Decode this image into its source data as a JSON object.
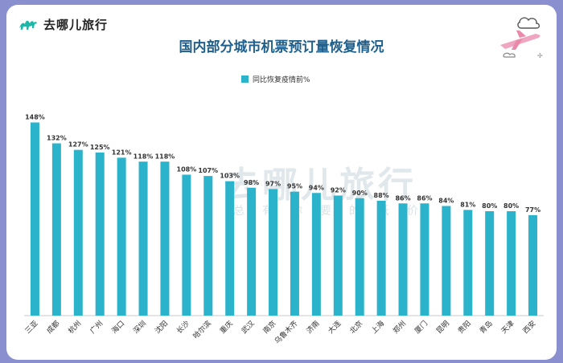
{
  "brand": {
    "name": "去哪儿旅行"
  },
  "watermark": {
    "main": "去哪儿旅行",
    "sub": "总有你要的低价"
  },
  "chart_data": {
    "type": "bar",
    "title": "国内部分城市机票预订量恢复情况",
    "legend": [
      "同比恢复疫情前%"
    ],
    "categories": [
      "三亚",
      "成都",
      "杭州",
      "广州",
      "海口",
      "深圳",
      "沈阳",
      "长沙",
      "哈尔滨",
      "重庆",
      "武汉",
      "南京",
      "乌鲁木齐",
      "济南",
      "大连",
      "北京",
      "上海",
      "郑州",
      "厦门",
      "昆明",
      "贵阳",
      "青岛",
      "天津",
      "西安"
    ],
    "values": [
      148,
      132,
      127,
      125,
      121,
      118,
      118,
      108,
      107,
      103,
      98,
      97,
      95,
      94,
      92,
      90,
      88,
      86,
      86,
      84,
      81,
      80,
      80,
      77
    ],
    "value_suffix": "%",
    "bar_color": "#2bb3cc",
    "ylim": [
      0,
      160
    ],
    "xlabel": "",
    "ylabel": "",
    "grid": false
  }
}
